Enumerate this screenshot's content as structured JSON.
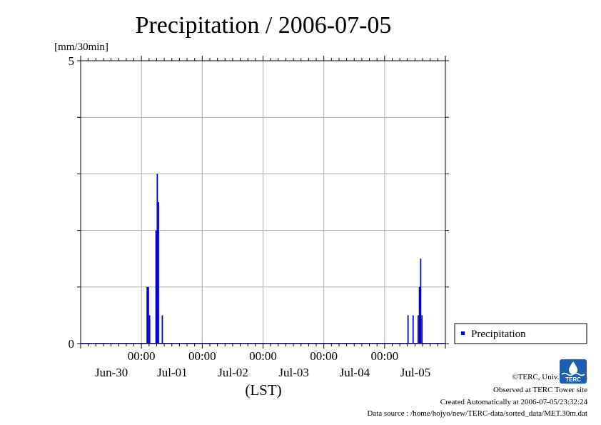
{
  "chart_data": {
    "type": "bar",
    "title": "Precipitation / 2006-07-05",
    "ylabel": "[mm/30min]",
    "xlabel": "(LST)",
    "ylim": [
      0,
      5
    ],
    "yticks": [
      {
        "value": 0,
        "label": "0"
      },
      {
        "value": 5,
        "label": "5"
      }
    ],
    "ygrid": [
      1,
      2,
      3,
      4
    ],
    "xlim": [
      "2006-06-30T00:00",
      "2006-07-06T00:00"
    ],
    "xticks": [
      {
        "time": "2006-07-01T00:00",
        "label": "00:00",
        "date_label": "Jun-30"
      },
      {
        "time": "2006-07-02T00:00",
        "label": "00:00",
        "date_label": "Jul-01"
      },
      {
        "time": "2006-07-03T00:00",
        "label": "00:00",
        "date_label": "Jul-02"
      },
      {
        "time": "2006-07-04T00:00",
        "label": "00:00",
        "date_label": "Jul-03"
      },
      {
        "time": "2006-07-05T00:00",
        "label": "00:00",
        "date_label": "Jul-04"
      }
    ],
    "extra_date_label": {
      "time": "2006-07-06T00:00",
      "label": "Jul-05"
    },
    "grid": true,
    "legend": {
      "position": "right",
      "entries": [
        {
          "name": "Precipitation",
          "color": "#0000cc"
        }
      ]
    },
    "series": [
      {
        "name": "Precipitation",
        "color": "#0000cc",
        "points": [
          {
            "time": "2006-07-01T02:30",
            "value": 1.0
          },
          {
            "time": "2006-07-01T03:00",
            "value": 1.0
          },
          {
            "time": "2006-07-01T03:30",
            "value": 0.5
          },
          {
            "time": "2006-07-01T06:00",
            "value": 2.0
          },
          {
            "time": "2006-07-01T06:30",
            "value": 3.0
          },
          {
            "time": "2006-07-01T07:00",
            "value": 2.5
          },
          {
            "time": "2006-07-01T08:30",
            "value": 0.5
          },
          {
            "time": "2006-07-05T09:30",
            "value": 0.5
          },
          {
            "time": "2006-07-05T11:30",
            "value": 0.5
          },
          {
            "time": "2006-07-05T13:30",
            "value": 0.5
          },
          {
            "time": "2006-07-05T14:00",
            "value": 1.0
          },
          {
            "time": "2006-07-05T14:30",
            "value": 1.5
          },
          {
            "time": "2006-07-05T15:00",
            "value": 0.5
          }
        ]
      }
    ]
  },
  "credits": {
    "copyright": "©TERC, Univ. Tsukuba",
    "site": "Observed at TERC Tower site",
    "created": "Created Automatically at 2006-07-05/23:32:24",
    "source": "Data source : /home/hojyo/new/TERC-data/sorted_data/MET.30m.dat"
  },
  "logo": {
    "text": "TERC",
    "color": "#1a5fb4"
  }
}
